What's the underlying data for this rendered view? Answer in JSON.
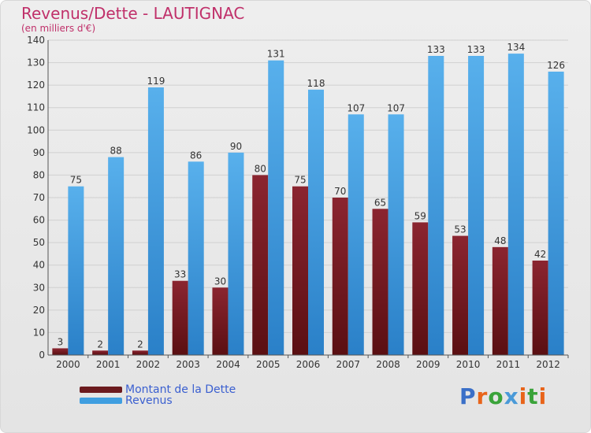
{
  "title": "Revenus/Dette - LAUTIGNAC",
  "subtitle": "(en milliers d'€)",
  "logo": {
    "text": "Proxiti",
    "letter_colors": [
      "#3a6fc8",
      "#e8641a",
      "#3aa33a",
      "#4a9ad8",
      "#e8641a",
      "#3aa33a",
      "#e8641a"
    ]
  },
  "colors": {
    "debt_top": "#8b2530",
    "debt_bottom": "#5a0f12",
    "revenue_top": "#58b0ec",
    "revenue_bottom": "#2a80c8",
    "grid": "#d0d0d0"
  },
  "legend": [
    {
      "label": "Montant de la Dette",
      "color": "#6b1a1e"
    },
    {
      "label": "Revenus",
      "color": "#3f9ee0"
    }
  ],
  "chart_data": {
    "type": "bar",
    "categories": [
      "2000",
      "2001",
      "2002",
      "2003",
      "2004",
      "2005",
      "2006",
      "2007",
      "2008",
      "2009",
      "2010",
      "2011",
      "2012"
    ],
    "series": [
      {
        "name": "Montant de la Dette",
        "values": [
          3,
          2,
          2,
          33,
          30,
          80,
          75,
          70,
          65,
          59,
          53,
          48,
          42
        ]
      },
      {
        "name": "Revenus",
        "values": [
          75,
          88,
          119,
          86,
          90,
          131,
          118,
          107,
          107,
          133,
          133,
          134,
          126
        ]
      }
    ],
    "title": "Revenus/Dette - LAUTIGNAC",
    "ylabel": "(en milliers d'€)",
    "ylim": [
      0,
      140
    ],
    "yticks": [
      0,
      10,
      20,
      30,
      40,
      50,
      60,
      70,
      80,
      90,
      100,
      110,
      120,
      130,
      140
    ],
    "grid": true,
    "legend_position": "bottom-left"
  }
}
